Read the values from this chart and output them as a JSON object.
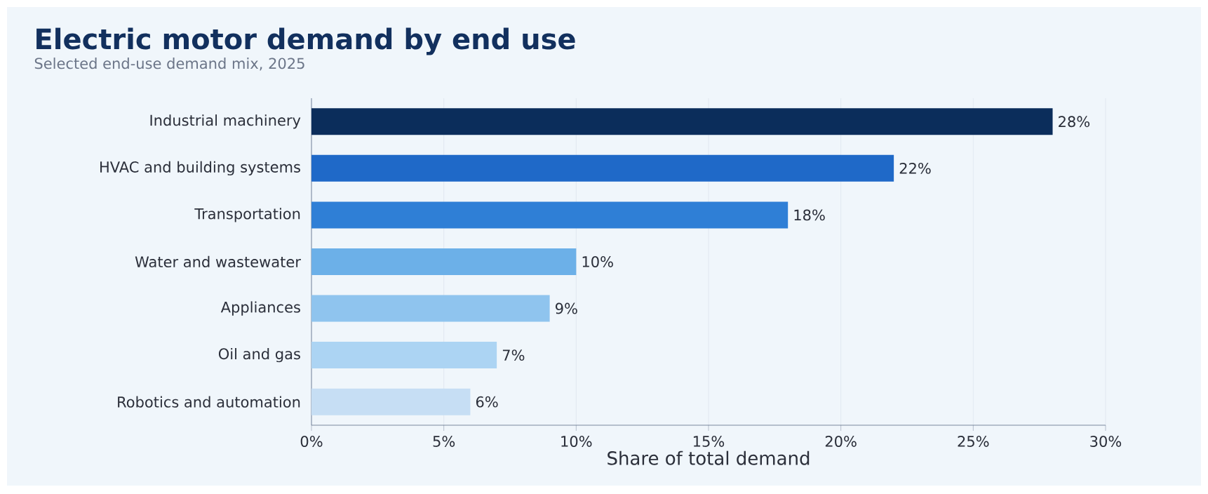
{
  "chart_data": {
    "type": "bar",
    "orientation": "horizontal",
    "title": "Electric motor demand by end use",
    "subtitle": "Selected end-use demand mix, 2025",
    "xlabel": "Share of total demand",
    "categories": [
      "Industrial machinery",
      "HVAC and building systems",
      "Transportation",
      "Water and wastewater",
      "Appliances",
      "Oil and gas",
      "Robotics and automation"
    ],
    "values": [
      28,
      22,
      18,
      10,
      9,
      7,
      6
    ],
    "colors": [
      "#0b2d5b",
      "#1f69c8",
      "#2f7fd6",
      "#6cb0e8",
      "#8fc4ee",
      "#acd4f3",
      "#c6def4"
    ],
    "value_labels": [
      "28%",
      "22%",
      "18%",
      "10%",
      "9%",
      "7%",
      "6%"
    ],
    "xlim": [
      0,
      30
    ],
    "xticks": [
      {
        "value": 0,
        "label": "0%"
      },
      {
        "value": 5,
        "label": "5%"
      },
      {
        "value": 10,
        "label": "10%"
      },
      {
        "value": 15,
        "label": "15%"
      },
      {
        "value": 20,
        "label": "20%"
      },
      {
        "value": 25,
        "label": "25%"
      },
      {
        "value": 30,
        "label": "30%"
      }
    ],
    "grid": "x"
  }
}
